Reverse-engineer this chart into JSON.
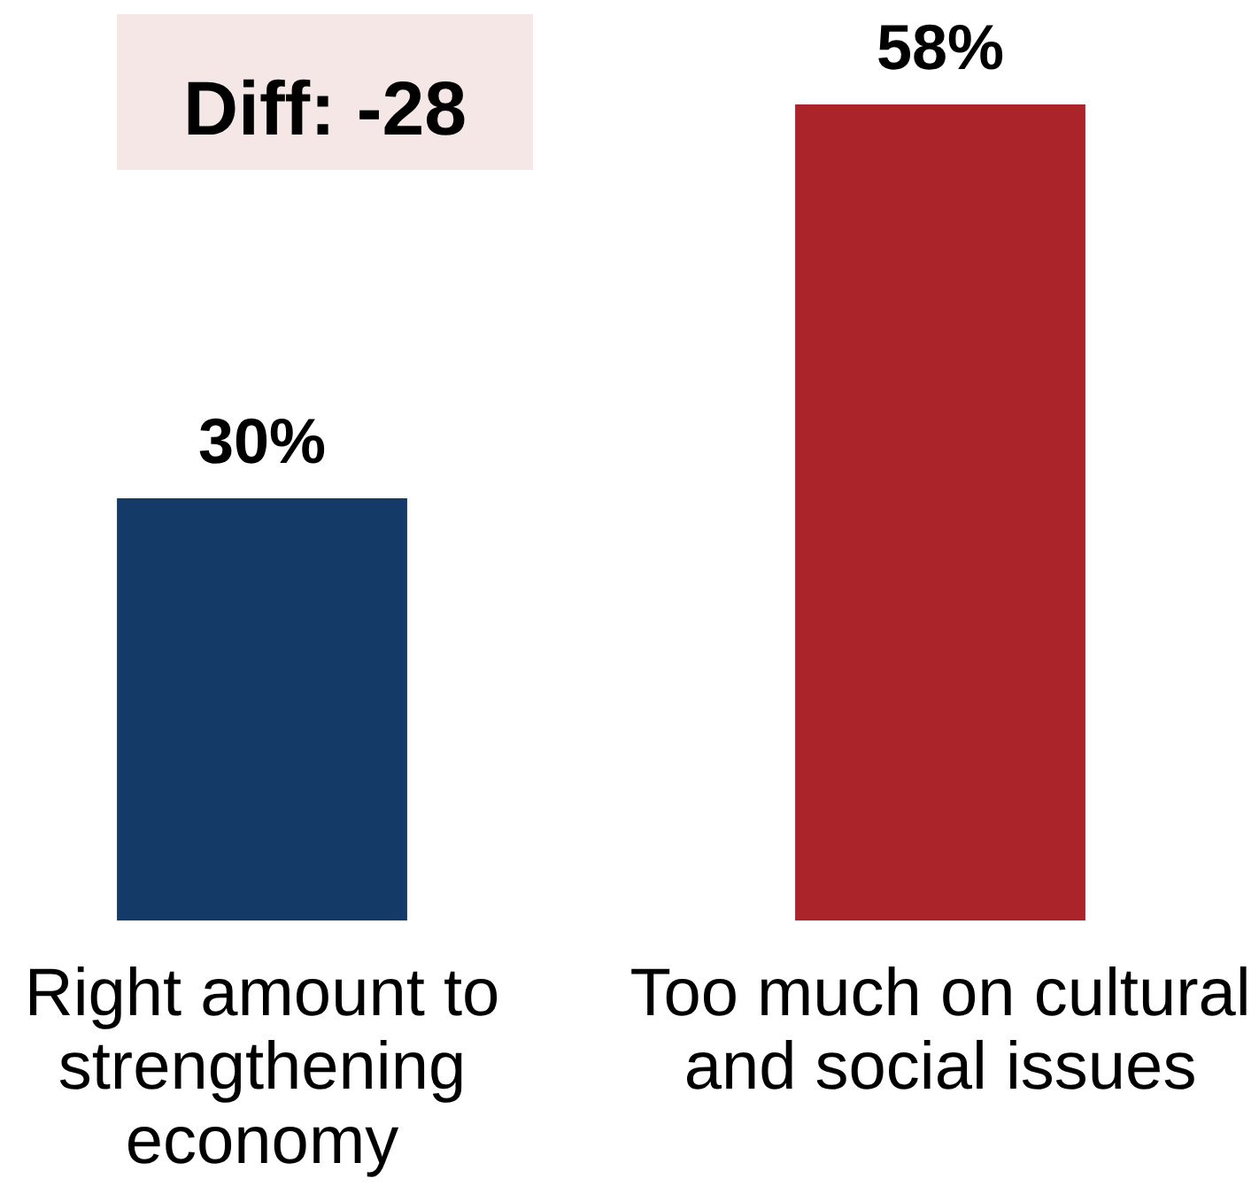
{
  "chart_data": {
    "type": "bar",
    "categories": [
      "Right amount to strengthening economy",
      "Too much on cultural and social issues"
    ],
    "values": [
      30,
      58
    ],
    "colors": [
      "#143a68",
      "#aa2429"
    ],
    "value_labels": [
      "30%",
      "58%"
    ],
    "annotations": [
      "Diff: -28"
    ],
    "tick_labels": "x"
  }
}
